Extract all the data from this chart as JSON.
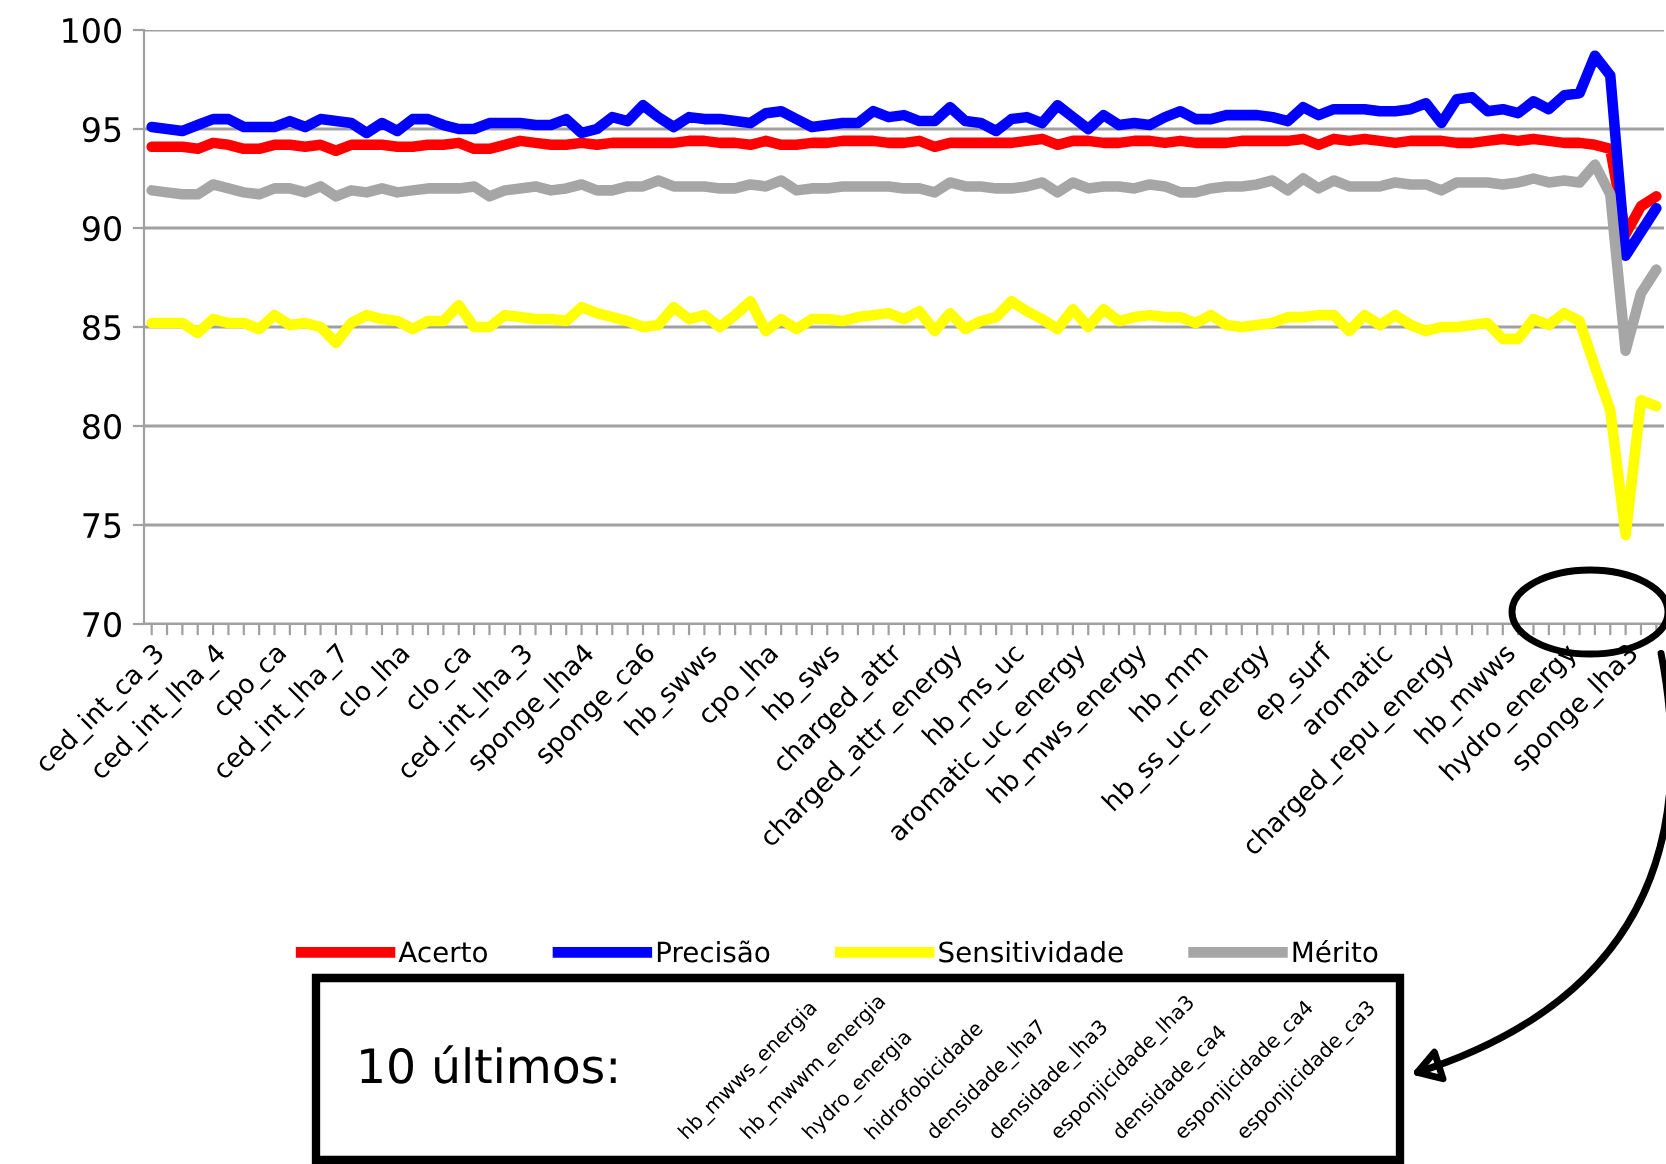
{
  "chart_data": {
    "type": "line",
    "categories": [
      "ced_int_ca_3",
      null,
      null,
      null,
      "ced_int_lha_4",
      null,
      null,
      null,
      "cpo_ca",
      null,
      null,
      null,
      "ced_int_lha_7",
      null,
      null,
      null,
      "clo_lha",
      null,
      null,
      null,
      "clo_ca",
      null,
      null,
      null,
      "ced_int_lha_3",
      null,
      null,
      null,
      "sponge_lha4",
      null,
      null,
      null,
      "sponge_ca6",
      null,
      null,
      null,
      "hb_swws",
      null,
      null,
      null,
      "cpo_lha",
      null,
      null,
      null,
      "hb_sws",
      null,
      null,
      null,
      "charged_attr",
      null,
      null,
      null,
      "charged_attr_energy",
      null,
      null,
      null,
      "hb_ms_uc",
      null,
      null,
      null,
      "aromatic_uc_energy",
      null,
      null,
      null,
      "hb_mws_energy",
      null,
      null,
      null,
      "hb_mm",
      null,
      null,
      null,
      "hb_ss_uc_energy",
      null,
      null,
      null,
      "ep_surf",
      null,
      null,
      null,
      "aromatic",
      null,
      null,
      null,
      "charged_repu_energy",
      null,
      null,
      null,
      "hb_mwws",
      null,
      null,
      null,
      "hydro_energy",
      null,
      null,
      null,
      "sponge_lha3",
      null,
      null
    ],
    "series": [
      {
        "name": "Acerto",
        "color": "#ff0000",
        "values": [
          94.1,
          94.1,
          94.1,
          94.0,
          94.3,
          94.2,
          94.0,
          94.0,
          94.2,
          94.2,
          94.1,
          94.2,
          93.9,
          94.2,
          94.2,
          94.2,
          94.1,
          94.1,
          94.2,
          94.2,
          94.3,
          94.0,
          94.0,
          94.2,
          94.4,
          94.3,
          94.2,
          94.2,
          94.3,
          94.2,
          94.3,
          94.3,
          94.3,
          94.3,
          94.3,
          94.4,
          94.4,
          94.3,
          94.3,
          94.2,
          94.4,
          94.2,
          94.2,
          94.3,
          94.3,
          94.4,
          94.4,
          94.4,
          94.3,
          94.3,
          94.4,
          94.1,
          94.3,
          94.3,
          94.3,
          94.3,
          94.3,
          94.4,
          94.5,
          94.2,
          94.4,
          94.4,
          94.3,
          94.3,
          94.4,
          94.4,
          94.3,
          94.4,
          94.3,
          94.3,
          94.3,
          94.4,
          94.4,
          94.4,
          94.4,
          94.5,
          94.2,
          94.5,
          94.4,
          94.5,
          94.4,
          94.3,
          94.4,
          94.4,
          94.4,
          94.3,
          94.3,
          94.4,
          94.5,
          94.4,
          94.5,
          94.4,
          94.3,
          94.3,
          94.2,
          94.0,
          89.7,
          91.1,
          91.6
        ]
      },
      {
        "name": "Precisão",
        "color": "#0000ff",
        "values": [
          95.1,
          95.0,
          94.9,
          95.2,
          95.5,
          95.5,
          95.1,
          95.1,
          95.1,
          95.4,
          95.1,
          95.5,
          95.4,
          95.3,
          94.8,
          95.3,
          94.9,
          95.5,
          95.5,
          95.2,
          95.0,
          95.0,
          95.3,
          95.3,
          95.3,
          95.2,
          95.2,
          95.5,
          94.8,
          95.0,
          95.6,
          95.4,
          96.2,
          95.6,
          95.1,
          95.6,
          95.5,
          95.5,
          95.4,
          95.3,
          95.8,
          95.9,
          95.5,
          95.1,
          95.2,
          95.3,
          95.3,
          95.9,
          95.6,
          95.7,
          95.4,
          95.4,
          96.1,
          95.4,
          95.3,
          94.9,
          95.5,
          95.6,
          95.3,
          96.2,
          95.6,
          95.0,
          95.7,
          95.2,
          95.3,
          95.2,
          95.6,
          95.9,
          95.5,
          95.5,
          95.7,
          95.7,
          95.7,
          95.6,
          95.4,
          96.1,
          95.7,
          96.0,
          96.0,
          96.0,
          95.9,
          95.9,
          96.0,
          96.3,
          95.3,
          96.5,
          96.6,
          95.9,
          96.0,
          95.8,
          96.4,
          96.0,
          96.7,
          96.8,
          98.7,
          97.7,
          88.6,
          89.8,
          91.0
        ]
      },
      {
        "name": "Sensitividade",
        "color": "#ffff00",
        "values": [
          85.2,
          85.2,
          85.2,
          84.7,
          85.4,
          85.2,
          85.2,
          84.9,
          85.6,
          85.1,
          85.2,
          85.0,
          84.2,
          85.2,
          85.6,
          85.4,
          85.3,
          84.9,
          85.3,
          85.3,
          86.1,
          85.0,
          85.0,
          85.6,
          85.5,
          85.4,
          85.4,
          85.3,
          86.0,
          85.7,
          85.5,
          85.3,
          85.0,
          85.1,
          86.0,
          85.4,
          85.6,
          85.0,
          85.6,
          86.3,
          84.8,
          85.4,
          84.9,
          85.4,
          85.4,
          85.3,
          85.5,
          85.6,
          85.7,
          85.4,
          85.8,
          84.8,
          85.7,
          84.9,
          85.3,
          85.5,
          86.3,
          85.8,
          85.4,
          84.9,
          85.9,
          85.0,
          85.9,
          85.3,
          85.5,
          85.6,
          85.5,
          85.5,
          85.2,
          85.6,
          85.1,
          85.0,
          85.1,
          85.2,
          85.5,
          85.5,
          85.6,
          85.6,
          84.8,
          85.6,
          85.1,
          85.6,
          85.1,
          84.8,
          85.0,
          85.0,
          85.1,
          85.2,
          84.4,
          84.4,
          85.4,
          85.1,
          85.7,
          85.3,
          83.0,
          80.8,
          74.5,
          81.3,
          81.0
        ]
      },
      {
        "name": "Mérito",
        "color": "#a6a6a6",
        "values": [
          91.9,
          91.8,
          91.7,
          91.7,
          92.2,
          92.0,
          91.8,
          91.7,
          92.0,
          92.0,
          91.8,
          92.1,
          91.6,
          91.9,
          91.8,
          92.0,
          91.8,
          91.9,
          92.0,
          92.0,
          92.0,
          92.1,
          91.6,
          91.9,
          92.0,
          92.1,
          91.9,
          92.0,
          92.2,
          91.9,
          91.9,
          92.1,
          92.1,
          92.4,
          92.1,
          92.1,
          92.1,
          92.0,
          92.0,
          92.2,
          92.1,
          92.4,
          91.9,
          92.0,
          92.0,
          92.1,
          92.1,
          92.1,
          92.1,
          92.0,
          92.0,
          91.8,
          92.3,
          92.1,
          92.1,
          92.0,
          92.0,
          92.1,
          92.3,
          91.8,
          92.3,
          92.0,
          92.1,
          92.1,
          92.0,
          92.2,
          92.1,
          91.8,
          91.8,
          92.0,
          92.1,
          92.1,
          92.2,
          92.4,
          91.9,
          92.5,
          92.0,
          92.4,
          92.1,
          92.1,
          92.1,
          92.3,
          92.2,
          92.2,
          91.9,
          92.3,
          92.3,
          92.3,
          92.2,
          92.3,
          92.5,
          92.3,
          92.4,
          92.3,
          93.2,
          91.7,
          83.8,
          86.7,
          87.9
        ]
      }
    ],
    "ylim": [
      70,
      100
    ],
    "yticks": [
      70,
      75,
      80,
      85,
      90,
      95,
      100
    ],
    "grid": "y",
    "legend": "bottom",
    "annotations": [
      "10 últimos:",
      "hb_mwws_energia",
      "hb_mwwm_energia",
      "hydro_energia",
      "hidrofobicidade",
      "densidade_lha7",
      "densidade_lha3",
      "esponjicidade_lha3",
      "densidade_ca4",
      "esponjicidade_ca4",
      "esponjicidade_ca3"
    ]
  }
}
